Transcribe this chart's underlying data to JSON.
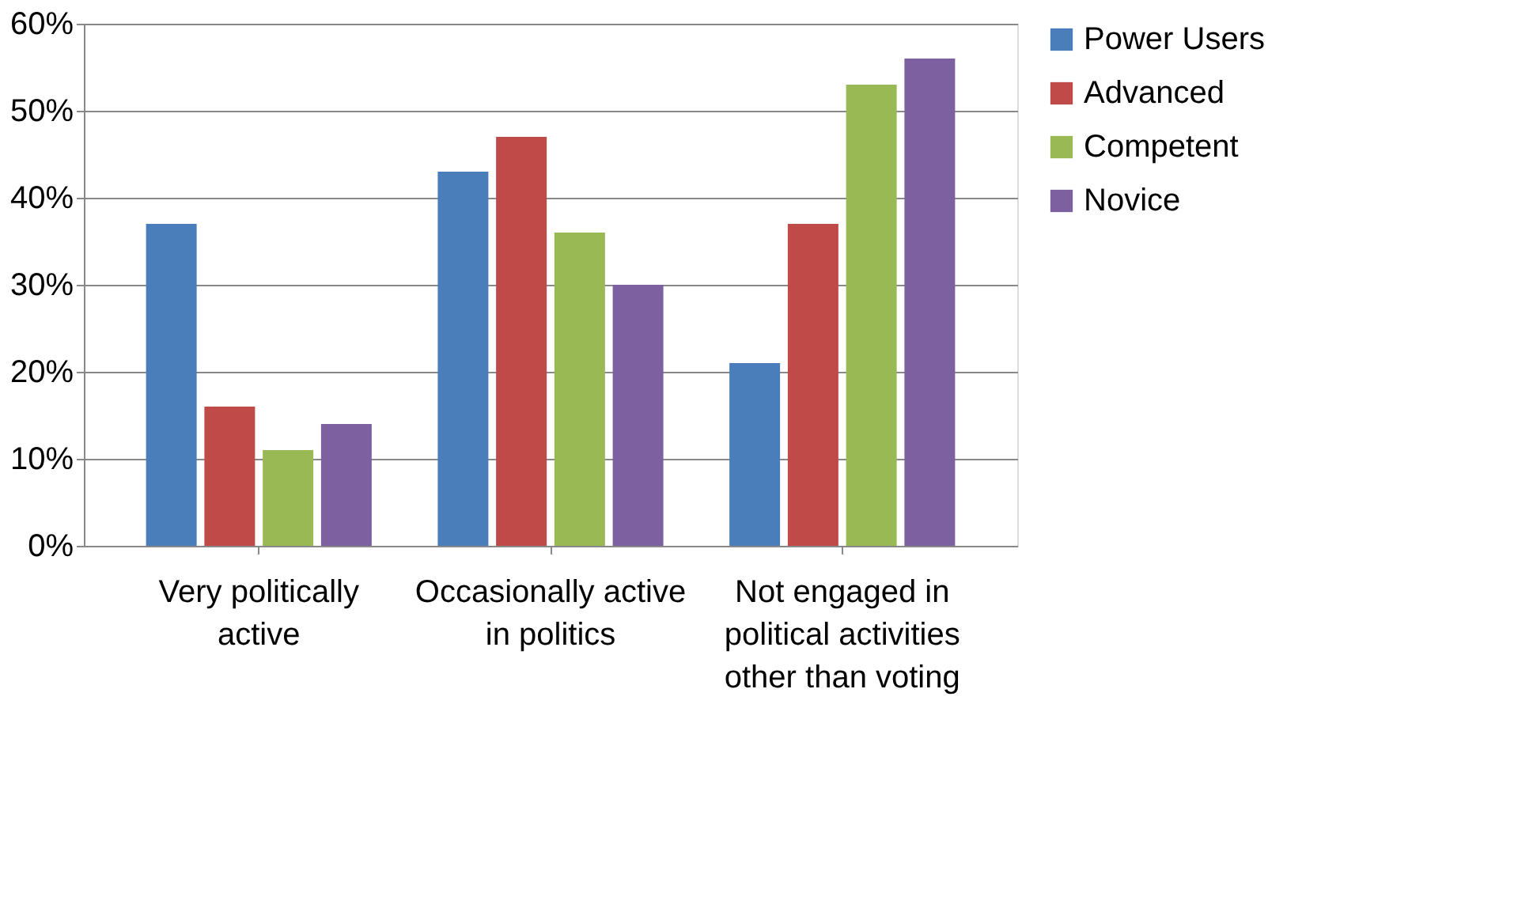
{
  "chart_data": {
    "type": "bar",
    "categories": [
      "Very politically active",
      "Occasionally active in politics",
      "Not engaged in political activities other than voting"
    ],
    "series": [
      {
        "name": "Power Users",
        "color": "#4a7ebb",
        "values": [
          37,
          43,
          21
        ]
      },
      {
        "name": "Advanced",
        "color": "#be4b48",
        "values": [
          16,
          47,
          37
        ]
      },
      {
        "name": "Competent",
        "color": "#98b954",
        "values": [
          11,
          36,
          53
        ]
      },
      {
        "name": "Novice",
        "color": "#7d60a0",
        "values": [
          14,
          30,
          56
        ]
      }
    ],
    "ylim": [
      0,
      60
    ],
    "yticks": [
      {
        "value": 0,
        "label": "0%"
      },
      {
        "value": 10,
        "label": "10%"
      },
      {
        "value": 20,
        "label": "20%"
      },
      {
        "value": 30,
        "label": "30%"
      },
      {
        "value": 40,
        "label": "40%"
      },
      {
        "value": 50,
        "label": "50%"
      },
      {
        "value": 60,
        "label": "60%"
      }
    ],
    "grid": "y",
    "legend": "right"
  }
}
